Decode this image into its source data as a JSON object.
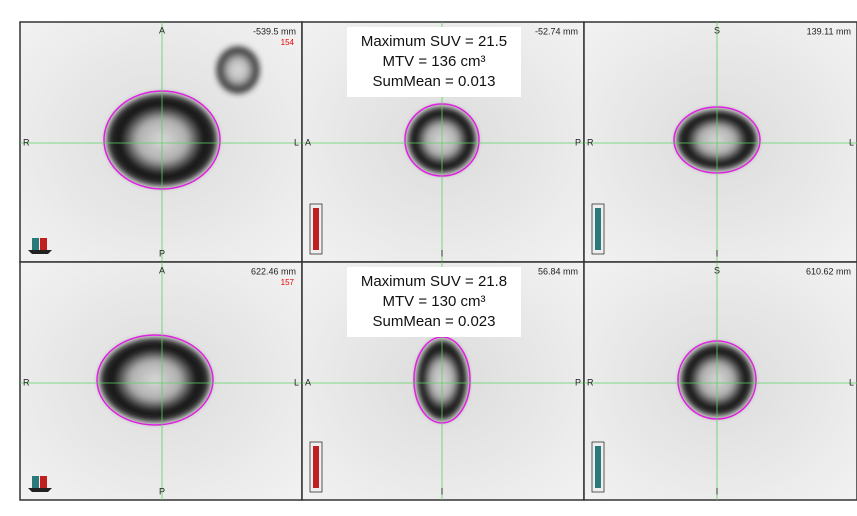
{
  "panels": [
    {
      "top": "A",
      "bottom": "P",
      "left": "R",
      "right": "L",
      "position": "-539.5 mm",
      "slice": "154"
    },
    {
      "bottom": "I",
      "left": "A",
      "right": "P",
      "position": "-52.74 mm"
    },
    {
      "top": "S",
      "bottom": "I",
      "left": "R",
      "right": "L",
      "position": "139.11 mm"
    },
    {
      "top": "A",
      "bottom": "P",
      "left": "R",
      "right": "L",
      "position": "622.46 mm",
      "slice": "157"
    },
    {
      "bottom": "I",
      "left": "A",
      "right": "P",
      "position": "56.84 mm"
    },
    {
      "top": "S",
      "bottom": "I",
      "left": "R",
      "right": "L",
      "position": "610.62 mm"
    }
  ],
  "overlays": [
    {
      "lines": [
        "Maximum SUV = 21.5",
        "MTV = 136 cm³",
        "SumMean = 0.013"
      ]
    },
    {
      "lines": [
        "Maximum SUV = 21.8",
        "MTV = 130 cm³",
        "SumMean = 0.023"
      ]
    }
  ]
}
